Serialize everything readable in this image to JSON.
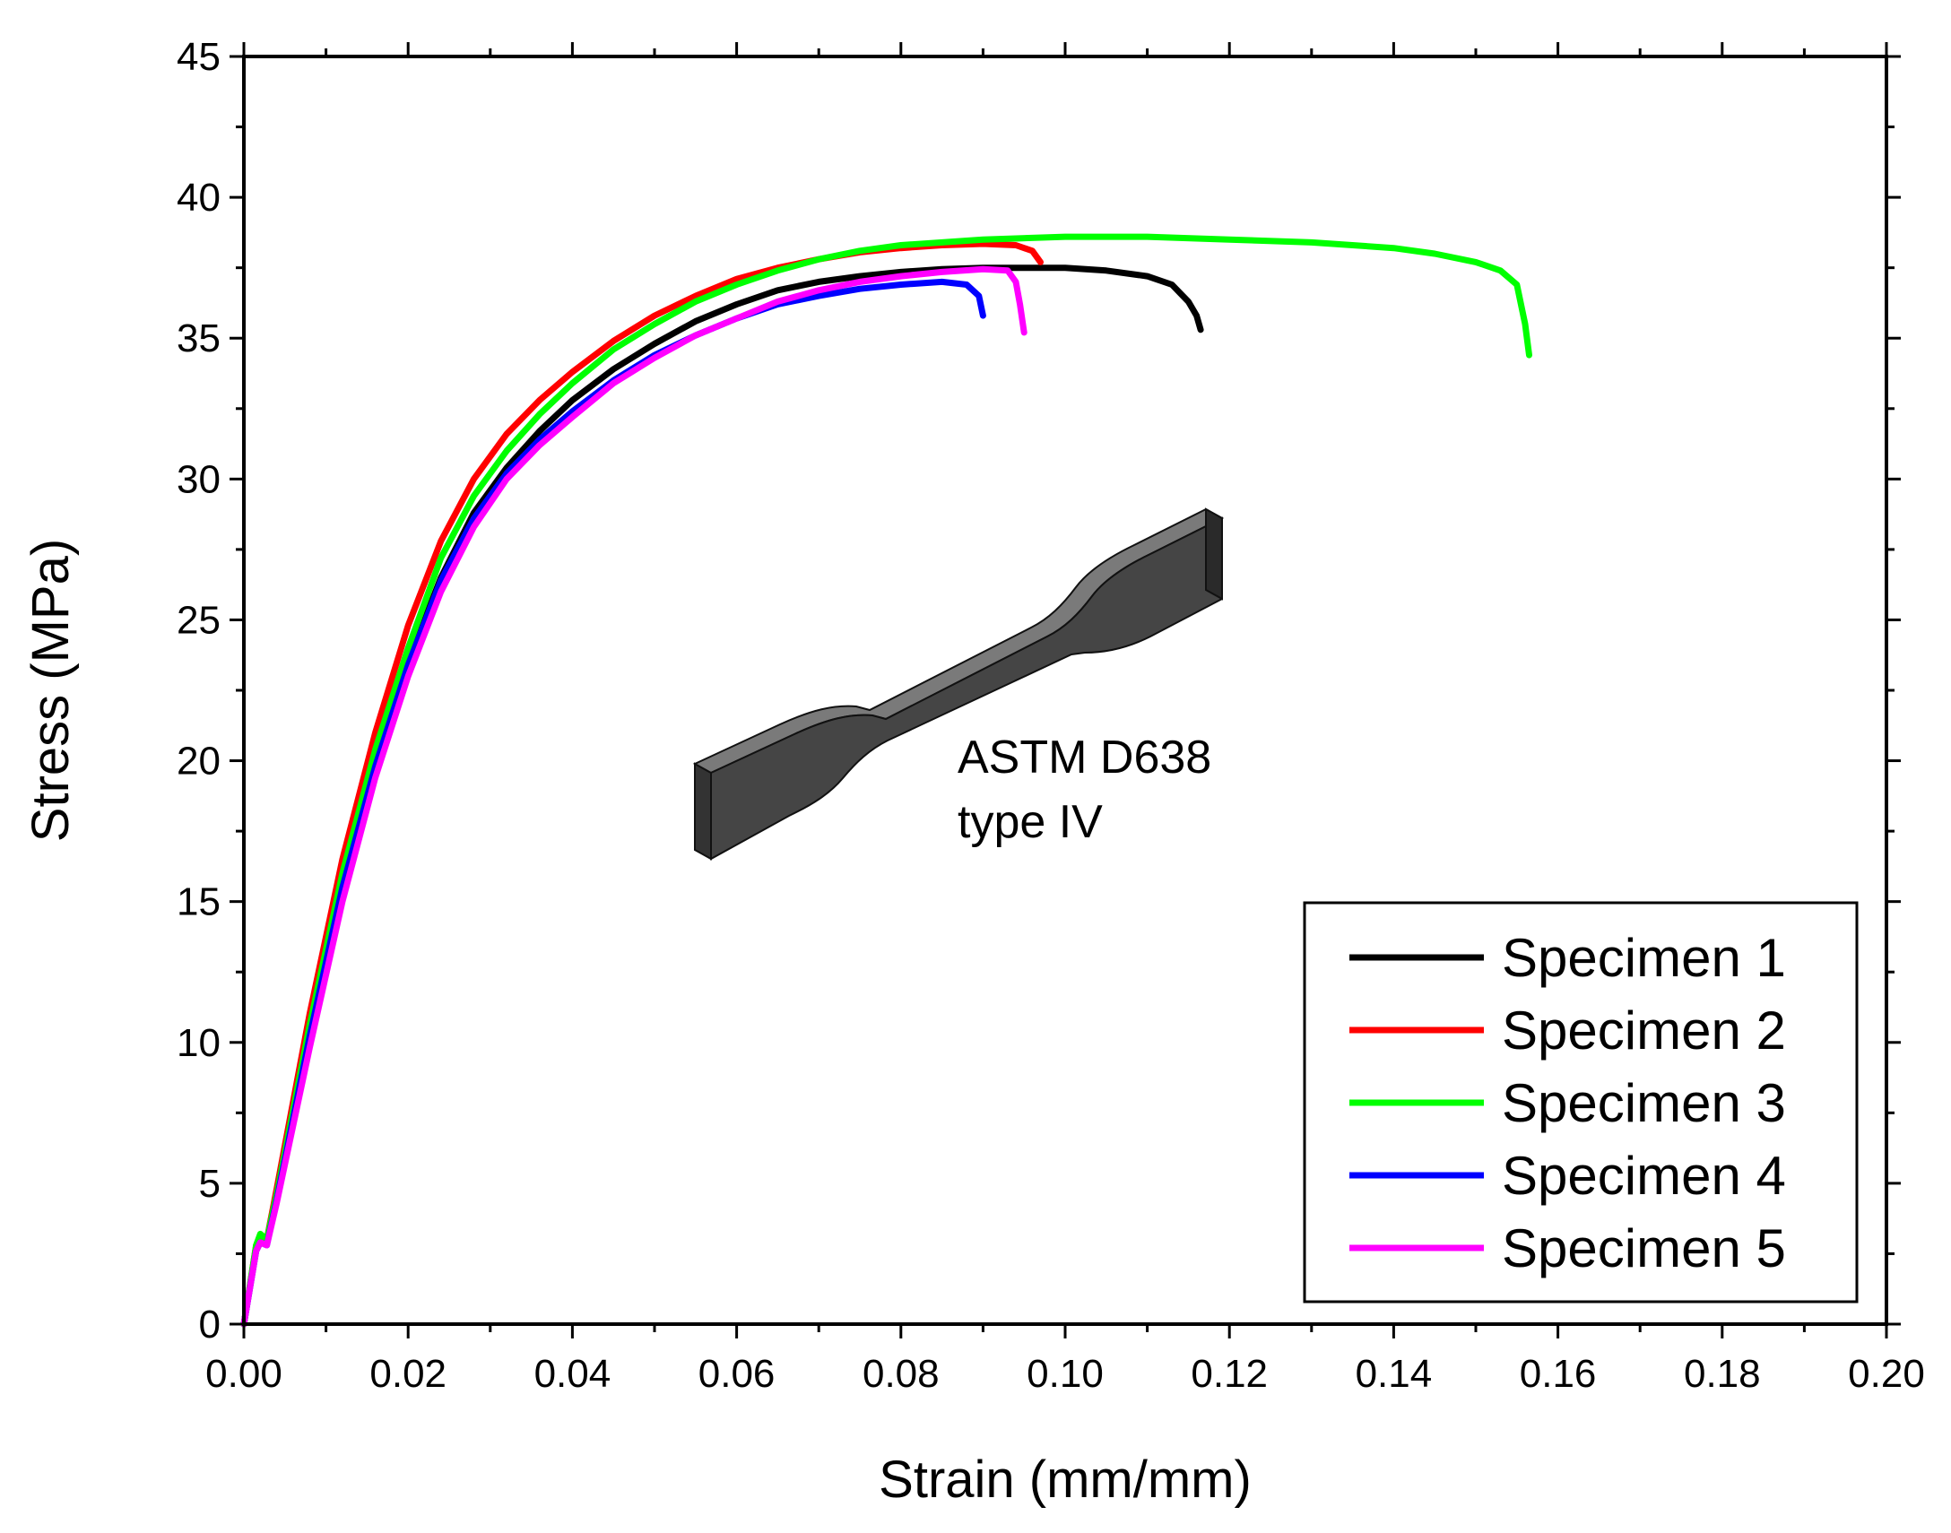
{
  "chart_data": {
    "type": "line",
    "title": "",
    "xlabel": "Strain (mm/mm)",
    "ylabel": "Stress (MPa)",
    "xlim": [
      0.0,
      0.2
    ],
    "ylim": [
      0,
      45
    ],
    "x_ticks": [
      "0.00",
      "0.02",
      "0.04",
      "0.06",
      "0.08",
      "0.10",
      "0.12",
      "0.14",
      "0.16",
      "0.18",
      "0.20"
    ],
    "y_ticks": [
      "0",
      "5",
      "10",
      "15",
      "20",
      "25",
      "30",
      "35",
      "40",
      "45"
    ],
    "grid": false,
    "legend_position": "bottom-right",
    "annotation": [
      "ASTM D638",
      "type IV"
    ],
    "series": [
      {
        "name": "Specimen 1",
        "color": "#000000",
        "x": [
          0,
          0.0015,
          0.002,
          0.0028,
          0.004,
          0.008,
          0.012,
          0.016,
          0.02,
          0.024,
          0.028,
          0.032,
          0.036,
          0.04,
          0.045,
          0.05,
          0.055,
          0.06,
          0.065,
          0.07,
          0.075,
          0.08,
          0.085,
          0.09,
          0.095,
          0.1,
          0.105,
          0.11,
          0.113,
          0.115,
          0.116,
          0.1165
        ],
        "y": [
          0,
          2.7,
          3.0,
          2.9,
          4.5,
          10.5,
          15.5,
          20.0,
          23.5,
          26.5,
          28.8,
          30.4,
          31.7,
          32.8,
          33.9,
          34.8,
          35.6,
          36.2,
          36.7,
          37.0,
          37.2,
          37.35,
          37.45,
          37.5,
          37.5,
          37.5,
          37.4,
          37.2,
          36.9,
          36.3,
          35.8,
          35.3
        ]
      },
      {
        "name": "Specimen 2",
        "color": "#ff0000",
        "x": [
          0,
          0.0015,
          0.002,
          0.0028,
          0.004,
          0.008,
          0.012,
          0.016,
          0.02,
          0.024,
          0.028,
          0.032,
          0.036,
          0.04,
          0.045,
          0.05,
          0.055,
          0.06,
          0.065,
          0.07,
          0.075,
          0.08,
          0.085,
          0.09,
          0.094,
          0.096,
          0.097
        ],
        "y": [
          0,
          2.8,
          3.1,
          3.0,
          4.8,
          11.0,
          16.5,
          21.0,
          24.8,
          27.8,
          30.0,
          31.6,
          32.8,
          33.8,
          34.9,
          35.8,
          36.5,
          37.1,
          37.5,
          37.8,
          38.05,
          38.2,
          38.3,
          38.35,
          38.3,
          38.1,
          37.7
        ]
      },
      {
        "name": "Specimen 3",
        "color": "#00ff00",
        "x": [
          0,
          0.0015,
          0.002,
          0.0028,
          0.004,
          0.008,
          0.012,
          0.016,
          0.02,
          0.024,
          0.028,
          0.032,
          0.036,
          0.04,
          0.045,
          0.05,
          0.055,
          0.06,
          0.065,
          0.07,
          0.075,
          0.08,
          0.09,
          0.1,
          0.11,
          0.12,
          0.13,
          0.14,
          0.145,
          0.15,
          0.153,
          0.155,
          0.156,
          0.1565
        ],
        "y": [
          0,
          2.8,
          3.2,
          3.0,
          4.6,
          10.6,
          16.0,
          20.4,
          24.0,
          27.2,
          29.4,
          31.0,
          32.3,
          33.4,
          34.6,
          35.5,
          36.3,
          36.9,
          37.4,
          37.8,
          38.1,
          38.3,
          38.5,
          38.6,
          38.6,
          38.5,
          38.4,
          38.2,
          38.0,
          37.7,
          37.4,
          36.9,
          35.5,
          34.4
        ]
      },
      {
        "name": "Specimen 4",
        "color": "#0000ff",
        "x": [
          0,
          0.0015,
          0.002,
          0.0028,
          0.004,
          0.008,
          0.012,
          0.016,
          0.02,
          0.024,
          0.028,
          0.032,
          0.036,
          0.04,
          0.045,
          0.05,
          0.055,
          0.06,
          0.065,
          0.07,
          0.075,
          0.08,
          0.085,
          0.088,
          0.0895,
          0.09
        ],
        "y": [
          0,
          2.6,
          2.9,
          2.8,
          4.4,
          10.2,
          15.5,
          19.8,
          23.4,
          26.4,
          28.6,
          30.2,
          31.4,
          32.4,
          33.5,
          34.4,
          35.1,
          35.7,
          36.2,
          36.5,
          36.75,
          36.9,
          37.0,
          36.9,
          36.5,
          35.8
        ]
      },
      {
        "name": "Specimen 5",
        "color": "#ff00ff",
        "x": [
          0,
          0.0015,
          0.002,
          0.0028,
          0.004,
          0.008,
          0.012,
          0.016,
          0.02,
          0.024,
          0.028,
          0.032,
          0.036,
          0.04,
          0.045,
          0.05,
          0.055,
          0.06,
          0.065,
          0.07,
          0.075,
          0.08,
          0.085,
          0.09,
          0.093,
          0.094,
          0.0945,
          0.095
        ],
        "y": [
          0,
          2.6,
          2.9,
          2.8,
          4.3,
          9.8,
          15.0,
          19.4,
          23.0,
          26.0,
          28.3,
          30.0,
          31.2,
          32.2,
          33.4,
          34.3,
          35.1,
          35.7,
          36.3,
          36.7,
          37.0,
          37.2,
          37.35,
          37.45,
          37.4,
          37.0,
          36.2,
          35.2
        ]
      }
    ]
  }
}
